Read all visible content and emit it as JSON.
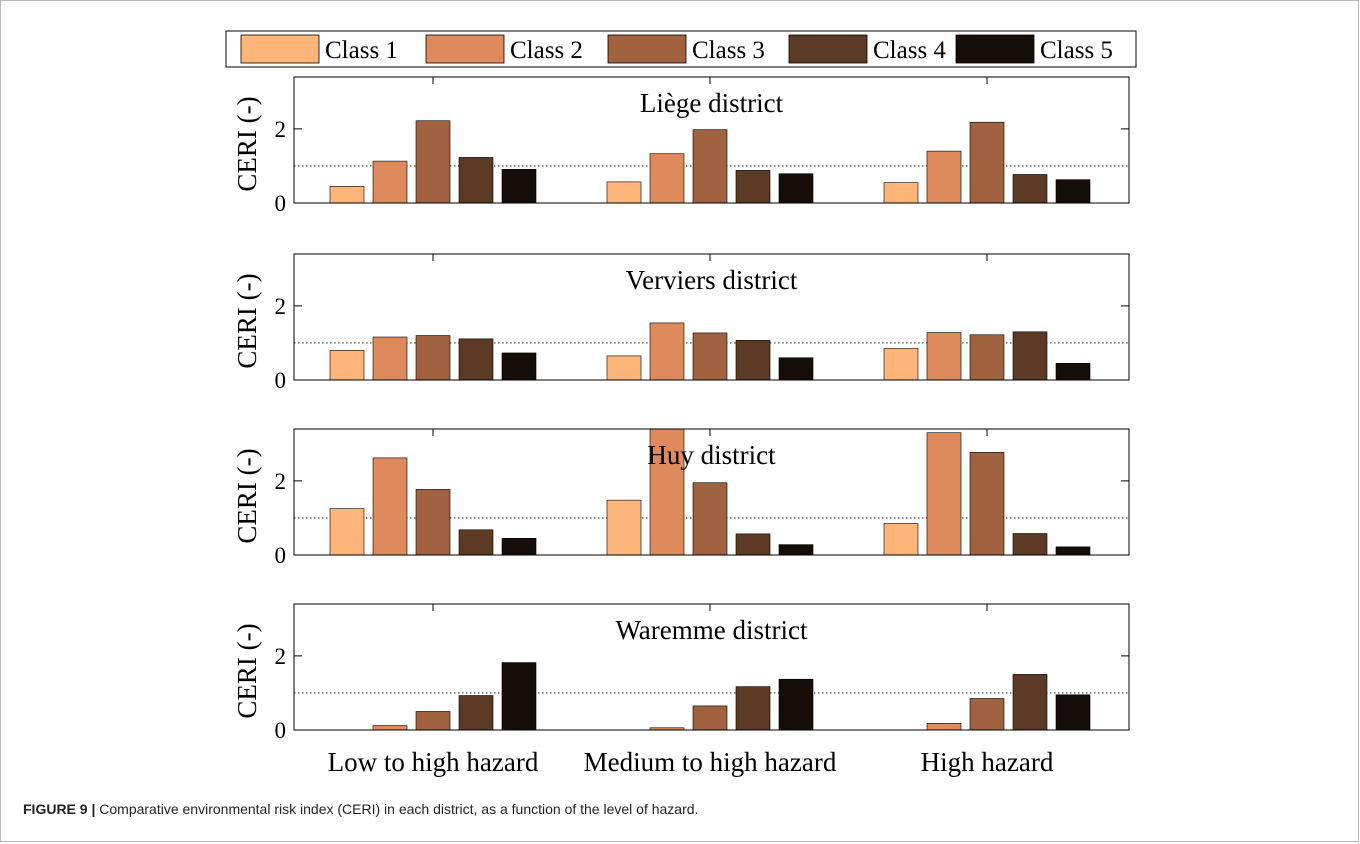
{
  "chart_data": {
    "type": "bar",
    "categories": [
      "Low to high hazard",
      "Medium to high hazard",
      "High hazard"
    ],
    "legend": [
      "Class 1",
      "Class 2",
      "Class 3",
      "Class 4",
      "Class 5"
    ],
    "legend_position": "top",
    "ylabel": "CERI (-)",
    "ylim": [
      0,
      3.4
    ],
    "yticks": [
      "0",
      "2"
    ],
    "reference_line": 1,
    "colors": [
      "#FDB57A",
      "#DE8A5C",
      "#A0623F",
      "#5C3A26",
      "#160C08"
    ],
    "panels": [
      {
        "title": "Liège district",
        "values": [
          [
            0.45,
            1.13,
            2.22,
            1.23,
            0.91
          ],
          [
            0.57,
            1.33,
            1.98,
            0.88,
            0.79
          ],
          [
            0.55,
            1.4,
            2.18,
            0.77,
            0.63
          ]
        ]
      },
      {
        "title": "Verviers district",
        "values": [
          [
            0.8,
            1.16,
            1.2,
            1.11,
            0.73
          ],
          [
            0.65,
            1.54,
            1.27,
            1.07,
            0.6
          ],
          [
            0.85,
            1.28,
            1.22,
            1.3,
            0.45
          ]
        ]
      },
      {
        "title": "Huy district",
        "values": [
          [
            1.25,
            2.62,
            1.77,
            0.68,
            0.45
          ],
          [
            1.48,
            3.4,
            1.95,
            0.57,
            0.28
          ],
          [
            0.85,
            3.3,
            2.77,
            0.58,
            0.22
          ]
        ]
      },
      {
        "title": "Waremme district",
        "values": [
          [
            0.0,
            0.12,
            0.5,
            0.93,
            1.82
          ],
          [
            0.0,
            0.06,
            0.65,
            1.17,
            1.37
          ],
          [
            0.0,
            0.18,
            0.85,
            1.5,
            0.95
          ]
        ]
      }
    ]
  },
  "caption": {
    "label": "FIGURE 9 |",
    "text": "Comparative environmental risk index (CERI) in each district, as a function of the level of hazard."
  }
}
